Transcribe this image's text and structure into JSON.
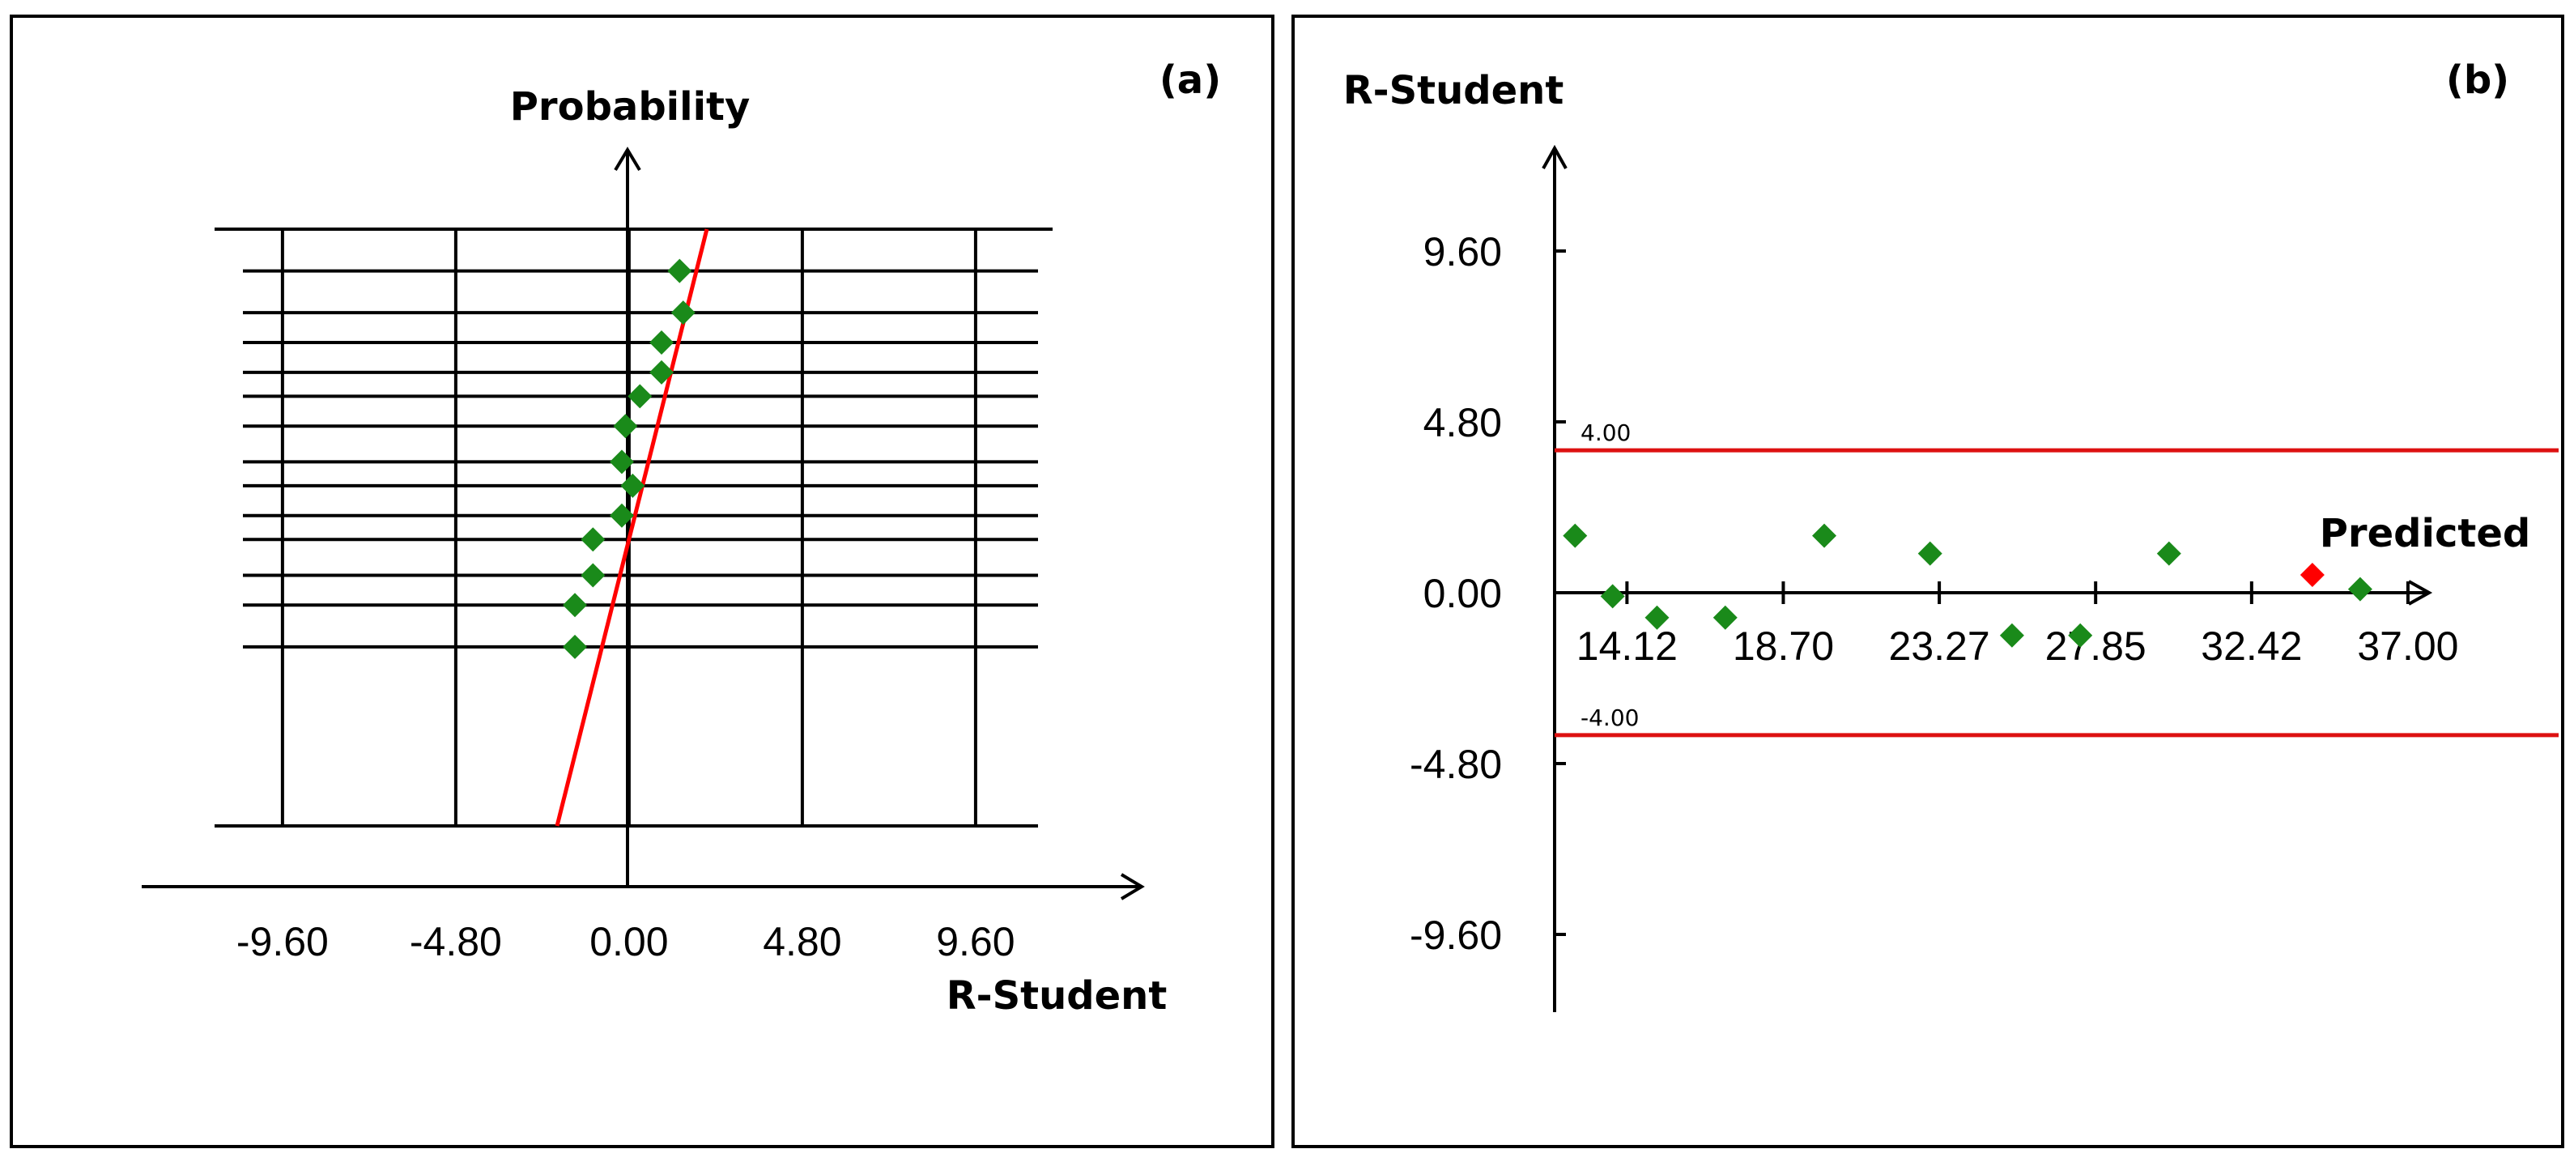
{
  "chart_data": [
    {
      "panel_label": "(a)",
      "type": "scatter",
      "xlabel": "R-Student",
      "ylabel": "Probability",
      "x_ticks": [
        "-9.60",
        "-4.80",
        "0.00",
        "4.80",
        "9.60"
      ],
      "xlim": [
        -13.5,
        14.2
      ],
      "grid": true,
      "marker_color": "#1a8a1a",
      "line_color": "#ff0000",
      "series": [
        {
          "points": [
            {
              "x": 1.4,
              "y": 0.93
            },
            {
              "x": 1.5,
              "y": 0.86
            },
            {
              "x": 0.9,
              "y": 0.81
            },
            {
              "x": 0.9,
              "y": 0.76
            },
            {
              "x": 0.3,
              "y": 0.72
            },
            {
              "x": -0.1,
              "y": 0.67
            },
            {
              "x": -0.2,
              "y": 0.61
            },
            {
              "x": 0.1,
              "y": 0.57
            },
            {
              "x": -0.2,
              "y": 0.52
            },
            {
              "x": -1.0,
              "y": 0.48
            },
            {
              "x": -1.0,
              "y": 0.42
            },
            {
              "x": -1.5,
              "y": 0.37
            },
            {
              "x": -1.5,
              "y": 0.3
            }
          ]
        }
      ]
    },
    {
      "panel_label": "(b)",
      "type": "scatter",
      "xlabel": "",
      "ylabel": "R-Student",
      "x_ticks": [
        "14.12",
        "18.70",
        "23.27",
        "27.85",
        "32.42",
        "37.00"
      ],
      "y_ticks": [
        "9.60",
        "4.80",
        "0.00",
        "-4.80",
        "-9.60"
      ],
      "xlim": [
        12.0,
        37.5
      ],
      "ylim": [
        -12.0,
        12.0
      ],
      "limits": [
        {
          "value": 4.0,
          "label": "4.00"
        },
        {
          "value": -4.0,
          "label": "-4.00"
        }
      ],
      "limit_color": "#dd1111",
      "series": [
        {
          "color": "#1a8a1a",
          "points": [
            {
              "x": 12.6,
              "y": 1.6
            },
            {
              "x": 13.7,
              "y": -0.1
            },
            {
              "x": 15.0,
              "y": -0.7
            },
            {
              "x": 17.0,
              "y": -0.7
            },
            {
              "x": 19.9,
              "y": 1.6
            },
            {
              "x": 23.0,
              "y": 1.1
            },
            {
              "x": 25.4,
              "y": -1.2
            },
            {
              "x": 27.4,
              "y": -1.2
            },
            {
              "x": 30.0,
              "y": 1.1
            },
            {
              "x": 35.6,
              "y": 0.1
            }
          ]
        },
        {
          "name": "Predicted",
          "color": "#ff0000",
          "points": [
            {
              "x": 34.2,
              "y": 0.5
            }
          ]
        }
      ]
    }
  ]
}
